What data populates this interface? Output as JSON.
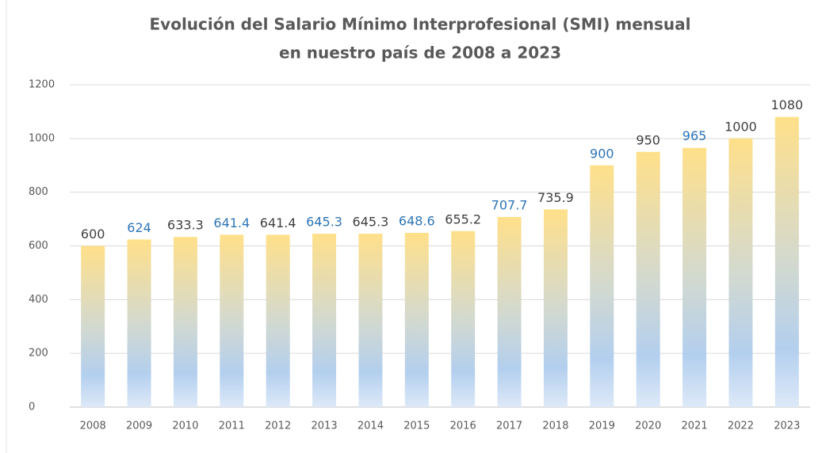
{
  "chart_data": {
    "type": "bar",
    "title": [
      "Evolución del Salario Mínimo Interprofesional (SMI) mensual",
      "en nuestro país de 2008 a 2023"
    ],
    "categories": [
      "2008",
      "2009",
      "2010",
      "2011",
      "2012",
      "2013",
      "2014",
      "2015",
      "2016",
      "2017",
      "2018",
      "2019",
      "2020",
      "2021",
      "2022",
      "2023"
    ],
    "values": [
      600,
      624,
      633.3,
      641.4,
      641.4,
      645.3,
      645.3,
      648.6,
      655.2,
      707.7,
      735.9,
      900,
      950,
      965,
      1000,
      1080
    ],
    "label_colors": [
      "#404040",
      "#2e75b6",
      "#404040",
      "#2e75b6",
      "#404040",
      "#2e75b6",
      "#404040",
      "#2e75b6",
      "#404040",
      "#2e75b6",
      "#404040",
      "#2e75b6",
      "#404040",
      "#2e75b6",
      "#404040",
      "#404040"
    ],
    "color": [
      "#ffe08a",
      "#b3cfee"
    ],
    "ylim": [
      0,
      1200
    ],
    "yticks": [
      0,
      200,
      400,
      600,
      800,
      1000,
      1200
    ],
    "grid": true
  }
}
